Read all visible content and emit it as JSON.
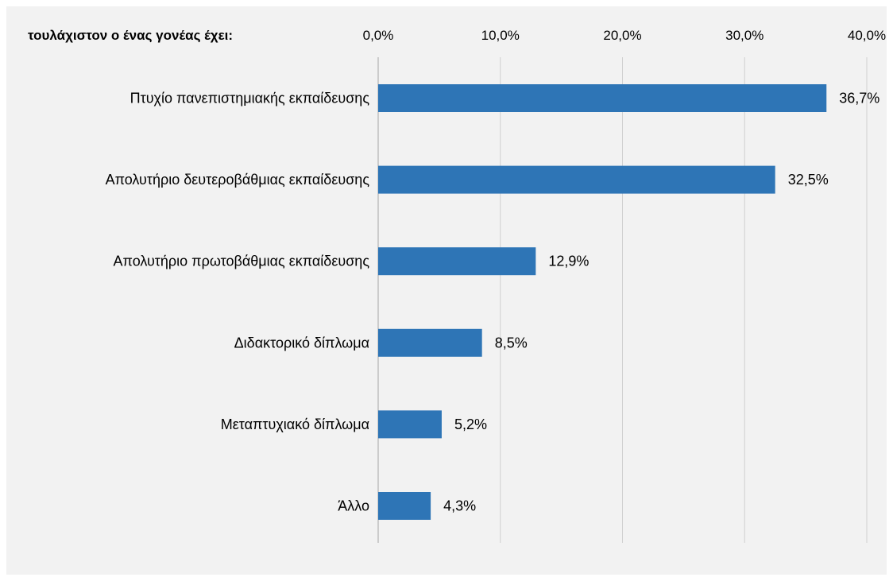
{
  "chart_data": {
    "type": "bar",
    "orientation": "horizontal",
    "title": "τουλάχιστον ο ένας γονέας έχει:",
    "categories": [
      "Πτυχίο πανεπιστημιακής εκπαίδευσης",
      "Απολυτήριο δευτεροβάθμιας εκπαίδευσης",
      "Απολυτήριο πρωτοβάθμιας εκπαίδευσης",
      "Διδακτορικό δίπλωμα",
      "Μεταπτυχιακό δίπλωμα",
      "Άλλο"
    ],
    "values": [
      36.7,
      32.5,
      12.9,
      8.5,
      5.2,
      4.3
    ],
    "data_labels": [
      "36,7%",
      "32,5%",
      "12,9%",
      "8,5%",
      "5,2%",
      "4,3%"
    ],
    "xlim": [
      0,
      40
    ],
    "x_ticks": [
      0,
      10,
      20,
      30,
      40
    ],
    "x_tick_labels": [
      "0,0%",
      "10,0%",
      "20,0%",
      "30,0%",
      "40,0%"
    ],
    "x_axis_position": "top",
    "grid": true,
    "bar_color": "#2e75b6",
    "background_color": "#f2f2f2"
  }
}
